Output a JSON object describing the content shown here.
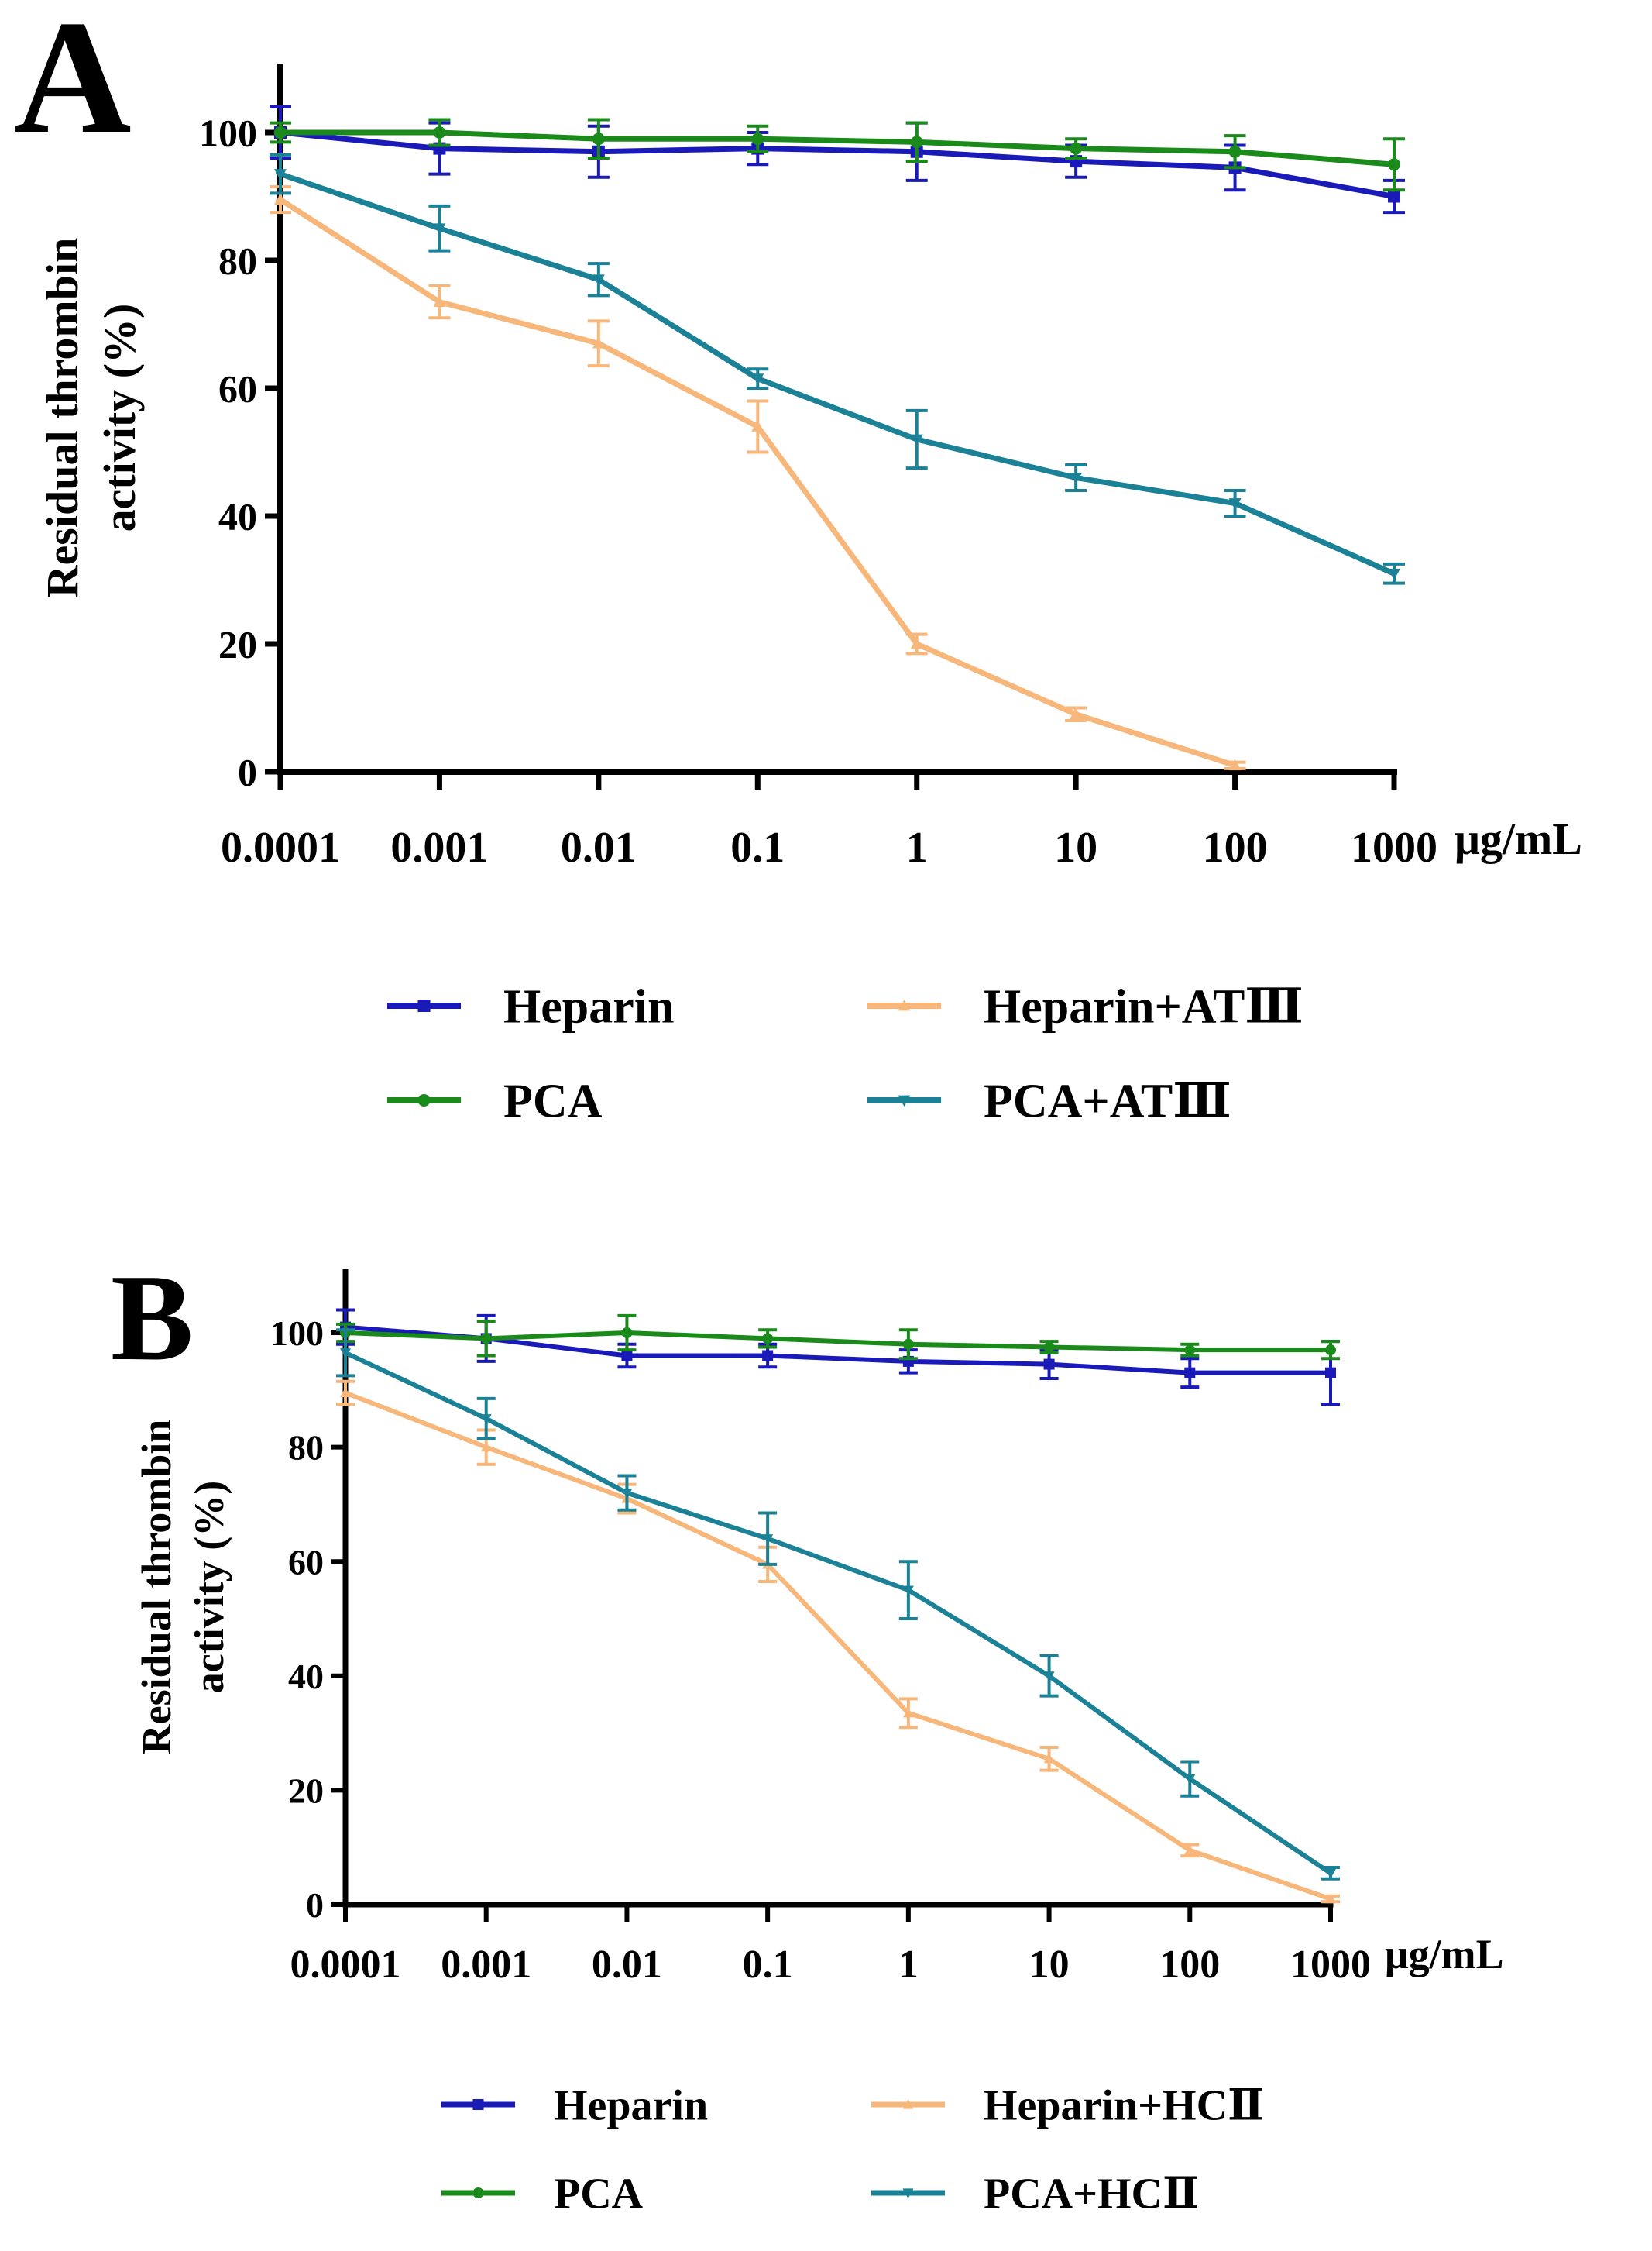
{
  "chart_data": [
    {
      "type": "line",
      "panel_label": "A",
      "ylabel_lines": [
        "Residual thrombin",
        "activity (%)"
      ],
      "x_unit": "μg/mL",
      "categories": [
        "0.0001",
        "0.001",
        "0.01",
        "0.1",
        "1",
        "10",
        "100",
        "1000"
      ],
      "yticks": [
        "0",
        "20",
        "40",
        "60",
        "80",
        "100"
      ],
      "ylim": [
        0,
        110
      ],
      "series": [
        {
          "name": "Heparin",
          "color": "#1a1ab8",
          "marker": "square",
          "values": [
            100,
            97.5,
            97,
            97.5,
            97,
            95.5,
            94.5,
            90
          ],
          "errors": [
            4,
            4,
            4,
            2.5,
            4.5,
            2.5,
            3.5,
            2.5
          ]
        },
        {
          "name": "PCA",
          "color": "#1a8a1a",
          "marker": "circle",
          "values": [
            100,
            100,
            99,
            99,
            98.5,
            97.5,
            97,
            95
          ],
          "errors": [
            1.5,
            2,
            3,
            2,
            3,
            1.5,
            2.5,
            4
          ]
        },
        {
          "name": "Heparin+ATⅢ",
          "color": "#f7b77a",
          "marker": "triangle",
          "values": [
            89.5,
            73.5,
            67,
            54,
            20,
            9,
            1,
            null
          ],
          "errors": [
            2,
            2.5,
            3.5,
            4,
            1.5,
            1,
            0.5,
            null
          ]
        },
        {
          "name": "PCA+ATⅢ",
          "color": "#1b8196",
          "marker": "triangle-down",
          "values": [
            93.5,
            85,
            77,
            61.5,
            52,
            46,
            42,
            31
          ],
          "errors": [
            3,
            3.5,
            2.5,
            1.5,
            4.5,
            2,
            2,
            1.5
          ]
        }
      ],
      "legend": [
        "Heparin",
        "Heparin+ATⅢ",
        "PCA",
        "PCA+ATⅢ"
      ]
    },
    {
      "type": "line",
      "panel_label": "B",
      "ylabel_lines": [
        "Residual thrombin",
        "activity (%)"
      ],
      "x_unit": "μg/mL",
      "categories": [
        "0.0001",
        "0.001",
        "0.01",
        "0.1",
        "1",
        "10",
        "100",
        "1000"
      ],
      "yticks": [
        "0",
        "20",
        "40",
        "60",
        "80",
        "100"
      ],
      "ylim": [
        0,
        110
      ],
      "series": [
        {
          "name": "Heparin",
          "color": "#1a1ab8",
          "marker": "square",
          "values": [
            101,
            99,
            96,
            96,
            95,
            94.5,
            93,
            93
          ],
          "errors": [
            3,
            4,
            2,
            2,
            2,
            2.5,
            2.5,
            5.5
          ]
        },
        {
          "name": "PCA",
          "color": "#1a8a1a",
          "marker": "circle",
          "values": [
            100,
            99,
            100,
            99,
            98,
            97.5,
            97,
            97
          ],
          "errors": [
            1.5,
            3,
            3,
            1.5,
            2.5,
            1,
            1,
            1.5
          ]
        },
        {
          "name": "Heparin+HCⅡ",
          "color": "#f7b77a",
          "marker": "triangle",
          "values": [
            89.5,
            80,
            71,
            59.5,
            33.5,
            25.5,
            9.5,
            1
          ],
          "errors": [
            2,
            3,
            2.5,
            3,
            2.5,
            2,
            1,
            0.5
          ]
        },
        {
          "name": "PCA+HCⅡ",
          "color": "#1b8196",
          "marker": "triangle-down",
          "values": [
            96.5,
            85,
            72,
            64,
            55,
            40,
            22,
            5.5
          ],
          "errors": [
            4,
            3.5,
            3,
            4.5,
            5,
            3.5,
            3,
            1
          ]
        }
      ],
      "legend": [
        "Heparin",
        "Heparin+HCⅡ",
        "PCA",
        "PCA+HCⅡ"
      ]
    }
  ]
}
